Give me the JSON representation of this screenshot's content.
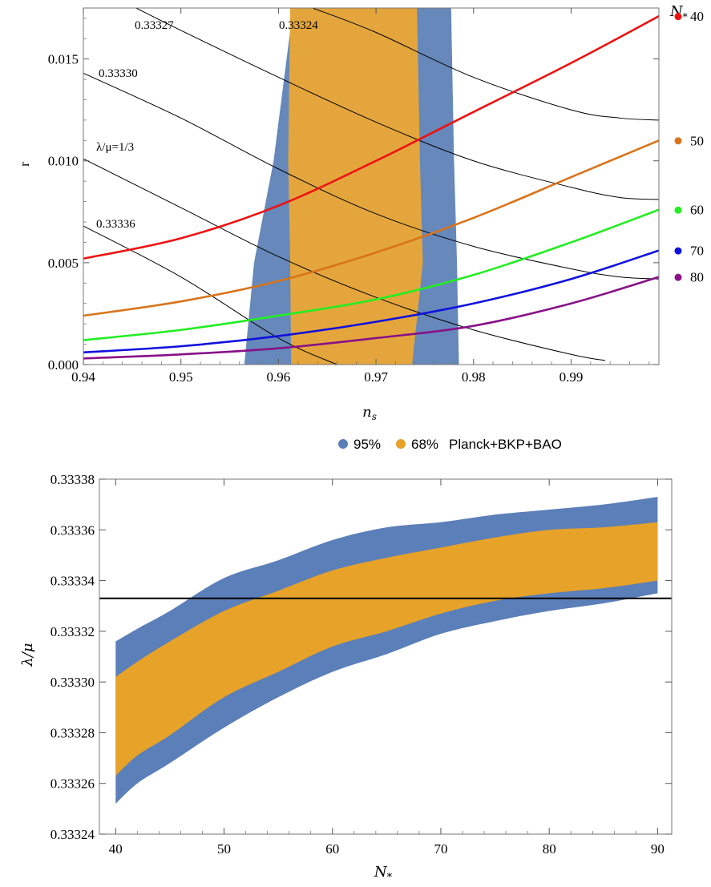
{
  "chart_data": [
    {
      "type": "line",
      "xlabel": "n_s",
      "ylabel": "r",
      "xlim": [
        0.94,
        0.999
      ],
      "ylim": [
        0.0,
        0.0175
      ],
      "xticks": [
        0.94,
        0.95,
        0.96,
        0.97,
        0.98,
        0.99
      ],
      "xtick_labels": [
        "0.94",
        "0.95",
        "0.96",
        "0.97",
        "0.98",
        "0.99"
      ],
      "yticks": [
        0.0,
        0.005,
        0.01,
        0.015
      ],
      "ytick_labels": [
        "0.000",
        "0.005",
        "0.010",
        "0.015"
      ],
      "bands": [
        {
          "name": "95%",
          "color": "#6688bb",
          "left": [
            [
              0.9565,
              0
            ],
            [
              0.9575,
              0.005
            ],
            [
              0.9595,
              0.01
            ],
            [
              0.9615,
              0.0175
            ]
          ],
          "right": [
            [
              0.9785,
              0
            ],
            [
              0.9783,
              0.005
            ],
            [
              0.978,
              0.01
            ],
            [
              0.9777,
              0.0175
            ]
          ]
        },
        {
          "name": "68%",
          "color": "#e4a63c",
          "left": [
            [
              0.9613,
              0
            ],
            [
              0.9612,
              0.005
            ],
            [
              0.961,
              0.01
            ],
            [
              0.9612,
              0.0175
            ]
          ],
          "right": [
            [
              0.9737,
              0
            ],
            [
              0.9748,
              0.005
            ],
            [
              0.9745,
              0.01
            ],
            [
              0.9742,
              0.0175
            ]
          ]
        }
      ],
      "series": [
        {
          "name": "40",
          "color": "#ee1111",
          "x": [
            0.94,
            0.95,
            0.96,
            0.97,
            0.98,
            0.99,
            0.999
          ],
          "y": [
            0.0052,
            0.0062,
            0.0078,
            0.01,
            0.0124,
            0.0148,
            0.0171
          ]
        },
        {
          "name": "50",
          "color": "#d9741a",
          "x": [
            0.94,
            0.95,
            0.96,
            0.97,
            0.98,
            0.99,
            0.999
          ],
          "y": [
            0.0024,
            0.0031,
            0.0041,
            0.0055,
            0.0072,
            0.0092,
            0.011
          ]
        },
        {
          "name": "60",
          "color": "#22ee22",
          "x": [
            0.94,
            0.95,
            0.96,
            0.97,
            0.98,
            0.99,
            0.999
          ],
          "y": [
            0.0012,
            0.0017,
            0.0024,
            0.0032,
            0.0044,
            0.006,
            0.0076
          ]
        },
        {
          "name": "70",
          "color": "#1111dd",
          "x": [
            0.94,
            0.95,
            0.96,
            0.97,
            0.98,
            0.99,
            0.999
          ],
          "y": [
            0.0006,
            0.0009,
            0.0014,
            0.0021,
            0.003,
            0.0042,
            0.0056
          ]
        },
        {
          "name": "80",
          "color": "#881188",
          "x": [
            0.94,
            0.95,
            0.96,
            0.97,
            0.98,
            0.99,
            0.999
          ],
          "y": [
            0.0003,
            0.0005,
            0.0008,
            0.0013,
            0.0019,
            0.003,
            0.0043
          ]
        }
      ],
      "contours": [
        {
          "label": "0.33324",
          "x": [
            0.9635,
            0.97,
            0.98,
            0.99,
            0.995,
            0.999
          ],
          "y": [
            0.0175,
            0.0163,
            0.0141,
            0.0125,
            0.0121,
            0.012
          ]
        },
        {
          "label": "0.33327",
          "x": [
            0.9454,
            0.95,
            0.96,
            0.97,
            0.98,
            0.99,
            0.995,
            0.999
          ],
          "y": [
            0.0175,
            0.0164,
            0.0141,
            0.0119,
            0.01,
            0.0087,
            0.0082,
            0.0081
          ]
        },
        {
          "label": "0.33330",
          "x": [
            0.94,
            0.95,
            0.96,
            0.97,
            0.98,
            0.99,
            0.995,
            0.999
          ],
          "y": [
            0.0143,
            0.0121,
            0.0096,
            0.0074,
            0.0058,
            0.0047,
            0.0043,
            0.0042
          ]
        },
        {
          "label": "λ/μ=1/3",
          "x": [
            0.94,
            0.95,
            0.96,
            0.97,
            0.98,
            0.99,
            0.9935
          ],
          "y": [
            0.0101,
            0.0077,
            0.0053,
            0.0033,
            0.0017,
            0.0005,
            0.0002
          ]
        },
        {
          "label": "0.33336",
          "x": [
            0.94,
            0.95,
            0.96,
            0.966
          ],
          "y": [
            0.0068,
            0.0043,
            0.0013,
            0.0
          ]
        }
      ],
      "legend": {
        "title": "N_*",
        "placement": "right"
      }
    },
    {
      "type": "area",
      "xlabel": "N_*",
      "ylabel": "λ/μ",
      "xlim": [
        38.5,
        91.3
      ],
      "ylim": [
        0.33324,
        0.33338
      ],
      "xticks": [
        40,
        50,
        60,
        70,
        80,
        90
      ],
      "xtick_labels": [
        "40",
        "50",
        "60",
        "70",
        "80",
        "90"
      ],
      "yticks": [
        0.33324,
        0.33326,
        0.33328,
        0.3333,
        0.33332,
        0.33334,
        0.33336,
        0.33338
      ],
      "ytick_labels": [
        "0.33324",
        "0.33326",
        "0.33328",
        "0.33330",
        "0.33332",
        "0.33334",
        "0.33336",
        "0.33338"
      ],
      "reference_line": 0.333333,
      "x": [
        40,
        42,
        45,
        50,
        55,
        60,
        65,
        70,
        75,
        80,
        85,
        90
      ],
      "series": [
        {
          "name": "95%",
          "color": "#5b7fb8",
          "upper": [
            0.333316,
            0.333321,
            0.333328,
            0.333341,
            0.333348,
            0.333356,
            0.333361,
            0.333363,
            0.333366,
            0.333368,
            0.33337,
            0.333373
          ],
          "lower": [
            0.333252,
            0.33326,
            0.333268,
            0.333282,
            0.333294,
            0.333304,
            0.333311,
            0.333319,
            0.333324,
            0.333328,
            0.333331,
            0.333335
          ]
        },
        {
          "name": "68%",
          "color": "#e6a229",
          "upper": [
            0.333302,
            0.333308,
            0.333316,
            0.333328,
            0.333336,
            0.333344,
            0.333349,
            0.333353,
            0.333357,
            0.33336,
            0.333361,
            0.333363
          ],
          "lower": [
            0.333263,
            0.333271,
            0.333279,
            0.333294,
            0.333304,
            0.333314,
            0.33332,
            0.333327,
            0.333332,
            0.333335,
            0.333337,
            0.33334
          ]
        }
      ]
    }
  ],
  "top_right_labels": [
    "40",
    "50",
    "60",
    "70",
    "80"
  ],
  "shared_legend": {
    "items": [
      {
        "label": "95%",
        "color": "#5b7fb8"
      },
      {
        "label": "68%",
        "color": "#e6a229"
      }
    ],
    "caption": "Planck+BKP+BAO"
  },
  "annotations": [
    "0.33327",
    "0.33324",
    "0.33330",
    "λ/μ=1/3",
    "0.33336"
  ]
}
